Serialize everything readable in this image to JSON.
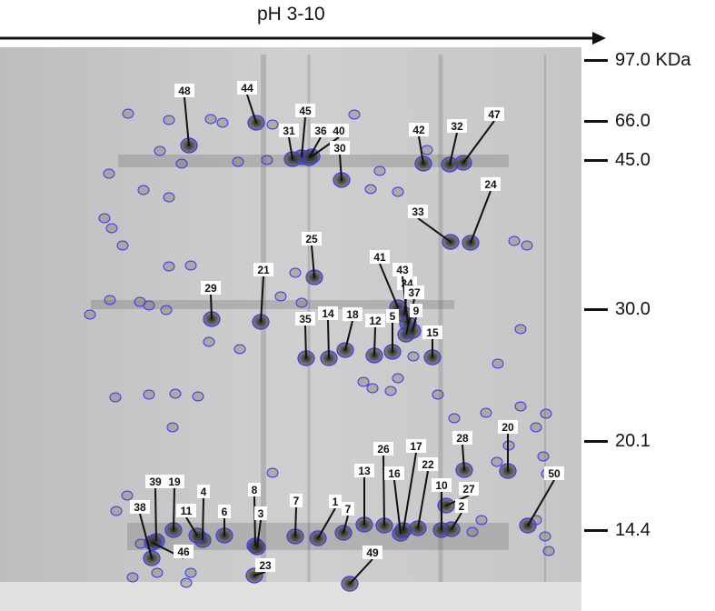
{
  "axis": {
    "title": "pH 3-10"
  },
  "markers": [
    {
      "label": "97.0 KDa"
    },
    {
      "label": "66.0"
    },
    {
      "label": "45.0"
    },
    {
      "label": "30.0"
    },
    {
      "label": "20.1"
    },
    {
      "label": "14.4"
    }
  ],
  "spots": [
    "48",
    "44",
    "45",
    "31",
    "36",
    "40",
    "30",
    "42",
    "32",
    "47",
    "24",
    "33",
    "25",
    "21",
    "29",
    "41",
    "34",
    "43",
    "37",
    "35",
    "14",
    "18",
    "12",
    "5",
    "9",
    "15",
    "28",
    "20",
    "50",
    "39",
    "19",
    "4",
    "11",
    "6",
    "8",
    "3",
    "7",
    "1",
    "7",
    "13",
    "26",
    "16",
    "17",
    "22",
    "10",
    "27",
    "2",
    "38",
    "46",
    "23",
    "49"
  ],
  "colors": {
    "spot_outline": "#3a3adf",
    "leader": "#111111",
    "gel_bg": "#c7c7c9"
  }
}
